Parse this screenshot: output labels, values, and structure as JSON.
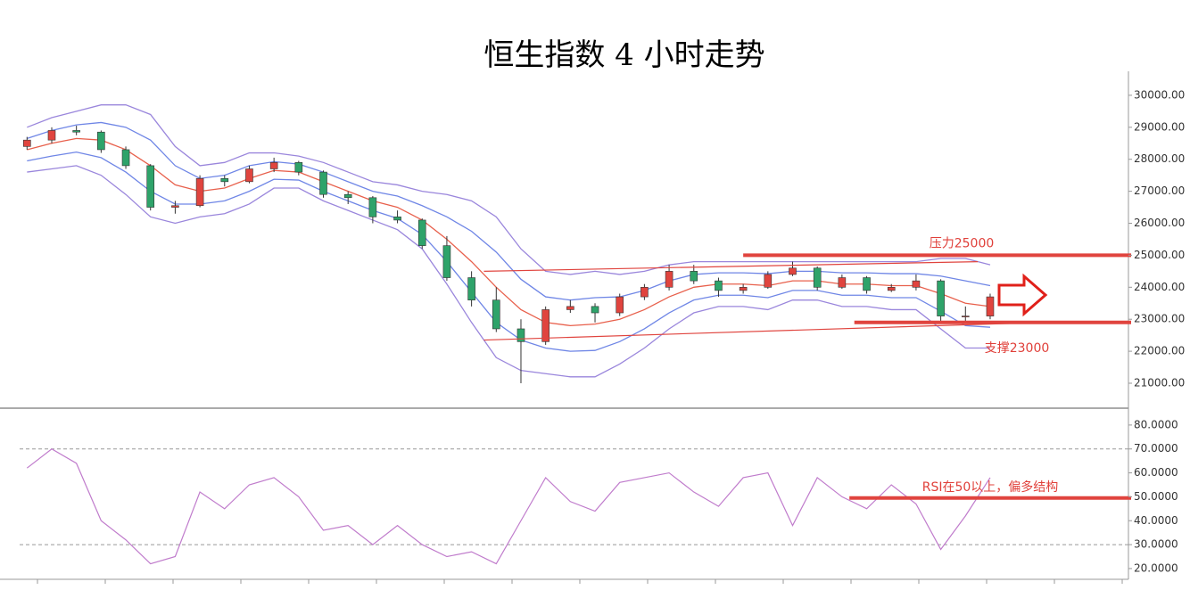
{
  "chart_data": [
    {
      "type": "candlestick",
      "title": "恒生指数 4 小时走势",
      "open": [
        28400,
        28600,
        28900,
        28850,
        28300,
        27800,
        26500,
        26550,
        27400,
        27300,
        27700,
        27900,
        27600,
        26900,
        26800,
        26200,
        26100,
        25300,
        24300,
        23600,
        22700,
        22300,
        23300,
        23400,
        23200,
        23700,
        24000,
        24500,
        24200,
        23900,
        24000,
        24400,
        24600,
        24000,
        24300,
        23900,
        24000,
        24200,
        23100,
        23100
      ],
      "high": [
        28700,
        29000,
        29050,
        28900,
        28400,
        27850,
        26700,
        27500,
        27500,
        27800,
        28050,
        27950,
        27650,
        27000,
        26850,
        26400,
        26150,
        25600,
        24500,
        24000,
        23000,
        23400,
        23600,
        23500,
        23800,
        24100,
        24700,
        24700,
        24300,
        24100,
        24500,
        24800,
        24650,
        24400,
        24350,
        24100,
        24400,
        24250,
        23400,
        23800
      ],
      "low": [
        28300,
        28500,
        28750,
        28200,
        27700,
        26400,
        26300,
        26500,
        27150,
        27250,
        27600,
        27500,
        26800,
        26600,
        26000,
        26000,
        25200,
        24200,
        23400,
        22600,
        21000,
        22200,
        23200,
        22900,
        23100,
        23600,
        23900,
        24100,
        23700,
        23800,
        23950,
        24350,
        23900,
        23950,
        23800,
        23850,
        23900,
        22900,
        22950,
        23000
      ],
      "close": [
        28600,
        28900,
        28850,
        28300,
        27800,
        26500,
        26550,
        27400,
        27300,
        27700,
        27900,
        27600,
        26900,
        26800,
        26200,
        26100,
        25300,
        24300,
        23600,
        22700,
        22300,
        23300,
        23400,
        23200,
        23700,
        24000,
        24500,
        24200,
        23900,
        24000,
        24400,
        24600,
        24000,
        24300,
        23900,
        24000,
        24200,
        23100,
        23100,
        23700
      ],
      "up_color": "#e0443e",
      "down_color": "#2ea36a",
      "bands": [
        {
          "color": "#9a86dc",
          "values": [
            29000,
            29300,
            29500,
            29700,
            29700,
            29400,
            28400,
            27800,
            27900,
            28200,
            28200,
            28100,
            27900,
            27600,
            27300,
            27200,
            27000,
            26900,
            26700,
            26200,
            25200,
            24500,
            24400,
            24500,
            24400,
            24500,
            24700,
            24800,
            24800,
            24800,
            24800,
            24800,
            24800,
            24800,
            24800,
            24800,
            24800,
            24900,
            24900,
            24700
          ]
        },
        {
          "color": "#6f86e6",
          "values": [
            28650,
            28900,
            29075,
            29150,
            29000,
            28600,
            27800,
            27400,
            27500,
            27800,
            27925,
            27850,
            27600,
            27300,
            27000,
            26850,
            26550,
            26200,
            25750,
            25100,
            24250,
            23700,
            23600,
            23675,
            23700,
            23900,
            24200,
            24400,
            24450,
            24450,
            24425,
            24500,
            24500,
            24450,
            24450,
            24425,
            24425,
            24350,
            24200,
            24050
          ]
        },
        {
          "color": "#e8604c",
          "values": [
            28300,
            28500,
            28650,
            28600,
            28300,
            27800,
            27200,
            27000,
            27100,
            27400,
            27650,
            27600,
            27300,
            27000,
            26700,
            26500,
            26100,
            25500,
            24800,
            24000,
            23300,
            22900,
            22800,
            22850,
            23000,
            23300,
            23700,
            24000,
            24100,
            24100,
            24050,
            24200,
            24200,
            24100,
            24100,
            24050,
            24050,
            23800,
            23500,
            23400
          ]
        },
        {
          "color": "#6f86e6",
          "values": [
            27950,
            28100,
            28225,
            28050,
            27600,
            27000,
            26600,
            26600,
            26700,
            27000,
            27375,
            27350,
            27000,
            26700,
            26400,
            26150,
            25650,
            24800,
            23850,
            22900,
            22350,
            22100,
            22000,
            22025,
            22300,
            22700,
            23200,
            23600,
            23750,
            23750,
            23675,
            23900,
            23900,
            23750,
            23750,
            23675,
            23675,
            23250,
            22800,
            22750
          ]
        },
        {
          "color": "#9a86dc",
          "values": [
            27600,
            27700,
            27800,
            27500,
            26900,
            26200,
            26000,
            26200,
            26300,
            26600,
            27100,
            27100,
            26700,
            26400,
            26100,
            25800,
            25200,
            24100,
            22900,
            21800,
            21400,
            21300,
            21200,
            21200,
            21600,
            22100,
            22700,
            23200,
            23400,
            23400,
            23300,
            23600,
            23600,
            23400,
            23400,
            23300,
            23300,
            22700,
            22100,
            22100
          ]
        }
      ],
      "trend_lines": [
        {
          "color": "#e0443e",
          "x": [
            18.5,
            38.5
          ],
          "values": [
            24500,
            24800
          ]
        },
        {
          "color": "#e0443e",
          "x": [
            18.5,
            41
          ],
          "values": [
            22350,
            22900
          ]
        }
      ],
      "annotations": [
        {
          "text": "压力25000",
          "value": 25000,
          "x0": 29,
          "color": "#e0443e"
        },
        {
          "text": "支撑23000",
          "value": 22900,
          "x0": 33.5,
          "color": "#e0443e"
        }
      ],
      "xlim": [
        -0.3,
        44.6
      ],
      "ylim": [
        20220,
        30750
      ],
      "yticks": [
        {
          "value": 21000,
          "label": "21000.00"
        },
        {
          "value": 22000,
          "label": "22000.00"
        },
        {
          "value": 23000,
          "label": "23000.00"
        },
        {
          "value": 24000,
          "label": "24000.00"
        },
        {
          "value": 25000,
          "label": "25000.00"
        },
        {
          "value": 26000,
          "label": "26000.00"
        },
        {
          "value": 27000,
          "label": "27000.00"
        },
        {
          "value": 28000,
          "label": "28000.00"
        },
        {
          "value": 29000,
          "label": "29000.00"
        },
        {
          "value": 30000,
          "label": "30000.00"
        }
      ]
    },
    {
      "type": "line",
      "color": "#c07ccc",
      "values": [
        62,
        70,
        64,
        40,
        32,
        22,
        25,
        52,
        45,
        55,
        58,
        50,
        36,
        38,
        30,
        38,
        30,
        25,
        27,
        22,
        40,
        58,
        48,
        44,
        56,
        58,
        60,
        52,
        46,
        58,
        60,
        38,
        58,
        50,
        45,
        55,
        47,
        28,
        42,
        58
      ],
      "ref_lines": [
        70,
        30
      ],
      "annotations": [
        {
          "text": "RSI在50以上，偏多结构",
          "value": 49.5,
          "x0": 33.3,
          "color": "#e0443e"
        }
      ],
      "xlim": [
        -0.3,
        44.6
      ],
      "ylim": [
        15.5,
        86.3
      ],
      "yticks": [
        {
          "value": 20,
          "label": "20.0000"
        },
        {
          "value": 30,
          "label": "30.0000"
        },
        {
          "value": 40,
          "label": "40.0000"
        },
        {
          "value": 50,
          "label": "50.0000"
        },
        {
          "value": 60,
          "label": "60.0000"
        },
        {
          "value": 70,
          "label": "70.0000"
        },
        {
          "value": 80,
          "label": "80.0000"
        }
      ]
    }
  ]
}
